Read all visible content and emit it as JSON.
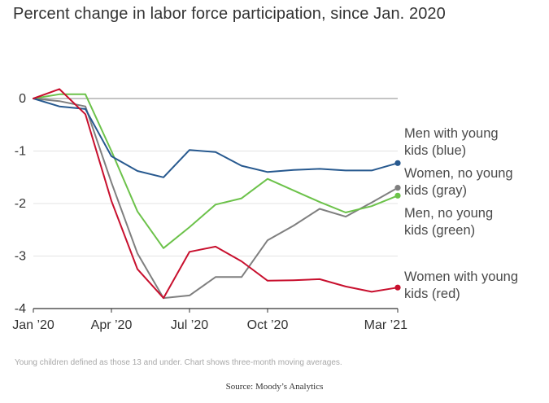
{
  "title": "Percent change in labor force participation, since Jan. 2020",
  "note": "Young children defined as those 13 and under. Chart shows three-month moving averages.",
  "source": "Source: Moody’s Analytics",
  "chart_data": {
    "type": "line",
    "title": "Percent change in labor force participation, since Jan. 2020",
    "xlabel": "",
    "ylabel": "",
    "x": [
      "2020-01",
      "2020-02",
      "2020-03",
      "2020-04",
      "2020-05",
      "2020-06",
      "2020-07",
      "2020-08",
      "2020-09",
      "2020-10",
      "2020-11",
      "2020-12",
      "2021-01",
      "2021-02",
      "2021-03"
    ],
    "xticks": [
      {
        "x": "2020-01",
        "label": "Jan ’20"
      },
      {
        "x": "2020-04",
        "label": "Apr ’20"
      },
      {
        "x": "2020-07",
        "label": "Jul ’20"
      },
      {
        "x": "2020-10",
        "label": "Oct ’20"
      },
      {
        "x": "2021-03",
        "label": "Mar ’21"
      }
    ],
    "yticks": [
      0,
      -1,
      -2,
      -3,
      -4
    ],
    "ylim": [
      -4,
      0
    ],
    "zero_line": true,
    "grid": true,
    "series": [
      {
        "name": "Men with young kids (blue)",
        "label_lines": [
          "Men with young",
          "kids (blue)"
        ],
        "color": "#27598f",
        "values": [
          0,
          -0.15,
          -0.2,
          -1.1,
          -1.38,
          -1.5,
          -0.98,
          -1.02,
          -1.28,
          -1.4,
          -1.36,
          -1.34,
          -1.37,
          -1.37,
          -1.23
        ]
      },
      {
        "name": "Women, no young kids (gray)",
        "label_lines": [
          "Women, no young",
          "kids (gray)"
        ],
        "color": "#7f7f7f",
        "values": [
          0,
          -0.05,
          -0.15,
          -1.6,
          -2.95,
          -3.8,
          -3.75,
          -3.4,
          -3.4,
          -2.7,
          -2.42,
          -2.1,
          -2.25,
          -1.98,
          -1.7
        ]
      },
      {
        "name": "Men, no young kids (green)",
        "label_lines": [
          "Men, no young",
          "kids (green)"
        ],
        "color": "#6cc24a",
        "values": [
          0,
          0.08,
          0.08,
          -1.0,
          -2.15,
          -2.85,
          -2.45,
          -2.02,
          -1.9,
          -1.53,
          -1.75,
          -1.97,
          -2.17,
          -2.05,
          -1.85
        ]
      },
      {
        "name": "Women with young kids (red)",
        "label_lines": [
          "Women with young",
          "kids (red)"
        ],
        "color": "#c8102e",
        "values": [
          0,
          0.18,
          -0.3,
          -1.95,
          -3.25,
          -3.8,
          -2.92,
          -2.82,
          -3.1,
          -3.47,
          -3.46,
          -3.44,
          -3.58,
          -3.68,
          -3.6
        ]
      }
    ]
  }
}
